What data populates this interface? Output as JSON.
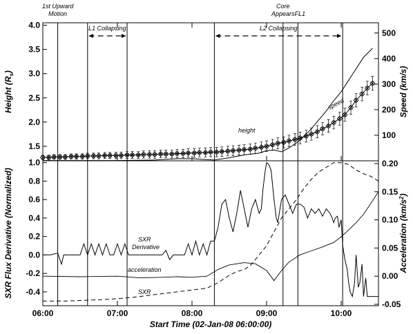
{
  "chart_data": [
    {
      "type": "line",
      "xlabel": "Start Time (02-Jan-08 06:00:00)",
      "ylabel_left": "Height (R",
      "ylabel_left_sub": "s",
      "ylabel_left_end": ")",
      "ylabel_right": "Speed (km/s)",
      "ylim_left": [
        1.2,
        4.05
      ],
      "ylim_right": [
        0,
        540
      ],
      "yticks_left": [
        "1.5",
        "2.0",
        "2.5",
        "3.0",
        "3.5",
        "4.0"
      ],
      "yticks_left_vals": [
        1.5,
        2.0,
        2.5,
        3.0,
        3.5,
        4.0
      ],
      "yticks_right": [
        "100",
        "200",
        "300",
        "400",
        "500"
      ],
      "yticks_right_vals": [
        100,
        200,
        300,
        400,
        500
      ],
      "series": [
        {
          "name": "height",
          "marker": "diamond-star",
          "x_hours": [
            6.0,
            6.08,
            6.15,
            6.23,
            6.3,
            6.38,
            6.45,
            6.53,
            6.6,
            6.68,
            6.75,
            6.83,
            6.9,
            6.98,
            7.05,
            7.13,
            7.2,
            7.28,
            7.35,
            7.43,
            7.5,
            7.58,
            7.65,
            7.73,
            7.8,
            7.88,
            7.95,
            8.03,
            8.1,
            8.18,
            8.25,
            8.33,
            8.4,
            8.48,
            8.55,
            8.63,
            8.7,
            8.78,
            8.85,
            8.93,
            9.0,
            9.08,
            9.15,
            9.23,
            9.3,
            9.38,
            9.45,
            9.53,
            9.6,
            9.68,
            9.75,
            9.83,
            9.9,
            9.98,
            10.05,
            10.13,
            10.2,
            10.28,
            10.35,
            10.42
          ],
          "y": [
            1.27,
            1.27,
            1.28,
            1.28,
            1.28,
            1.29,
            1.29,
            1.29,
            1.3,
            1.3,
            1.3,
            1.31,
            1.31,
            1.31,
            1.31,
            1.32,
            1.32,
            1.32,
            1.33,
            1.33,
            1.33,
            1.34,
            1.34,
            1.34,
            1.35,
            1.35,
            1.36,
            1.36,
            1.37,
            1.37,
            1.38,
            1.38,
            1.39,
            1.4,
            1.41,
            1.42,
            1.43,
            1.44,
            1.46,
            1.48,
            1.5,
            1.53,
            1.56,
            1.58,
            1.61,
            1.64,
            1.67,
            1.71,
            1.75,
            1.8,
            1.86,
            1.92,
            1.99,
            2.07,
            2.15,
            2.3,
            2.45,
            2.58,
            2.7,
            2.8
          ]
        },
        {
          "name": "speed",
          "x_hours": [
            6.0,
            6.5,
            7.0,
            7.5,
            7.8,
            8.0,
            8.3,
            8.5,
            8.7,
            8.9,
            9.0,
            9.1,
            9.2,
            9.3,
            9.4,
            9.5,
            9.6,
            9.7,
            9.8,
            9.9,
            10.0,
            10.1,
            10.2,
            10.3,
            10.42
          ],
          "y": [
            1,
            1,
            1,
            3,
            8,
            8,
            3,
            12,
            23,
            30,
            40,
            42,
            35,
            50,
            70,
            95,
            125,
            160,
            195,
            235,
            270,
            315,
            360,
            405,
            440
          ]
        }
      ],
      "annotations": [
        {
          "text": "1st Upward",
          "line2": "Motion",
          "at_hour": 6.2
        },
        {
          "text": "L1 Collapsing",
          "from_hour": 6.6,
          "to_hour": 7.13
        },
        {
          "text": "L2 Collapsing",
          "from_hour": 8.3,
          "to_hour": 10.02
        },
        {
          "text": "Core",
          "line2": "Appears",
          "at_hour": 9.22
        },
        {
          "text": "FL1",
          "at_hour": 9.42
        }
      ],
      "vertical_lines_hours": [
        6.2,
        6.6,
        7.13,
        8.3,
        9.22,
        9.42,
        10.02
      ],
      "curve_labels": {
        "height": "height",
        "speed": "speed"
      }
    },
    {
      "type": "line",
      "xlabel": "Start Time (02-Jan-08 06:00:00)",
      "ylabel_left": "SXR Flux Derivative (Normalized)",
      "ylabel_right": "Acceleration (km/s",
      "ylabel_right_sup": "2",
      "ylabel_right_end": ")",
      "xlim_hours": [
        6.0,
        10.5
      ],
      "xticks": [
        "06:00",
        "07:00",
        "08:00",
        "09:00",
        "10:00"
      ],
      "xticks_hours": [
        6,
        7,
        8,
        9,
        10
      ],
      "ylim_left": [
        -0.55,
        1.02
      ],
      "ylim_right": [
        -0.0525,
        0.205
      ],
      "yticks_left": [
        "-0.4",
        "-0.2",
        "0.0",
        "0.2",
        "0.4",
        "0.6",
        "0.8",
        "1.0"
      ],
      "yticks_left_vals": [
        -0.4,
        -0.2,
        0.0,
        0.2,
        0.4,
        0.6,
        0.8,
        1.0
      ],
      "yticks_right": [
        "-0.05",
        "0.00",
        "0.05",
        "0.10",
        "0.15",
        "0.20"
      ],
      "yticks_right_vals": [
        -0.05,
        0.0,
        0.05,
        0.1,
        0.15,
        0.2
      ],
      "series": [
        {
          "name": "SXR Derivative",
          "x_hours": [
            6.0,
            6.05,
            6.1,
            6.2,
            6.25,
            6.28,
            6.3,
            6.35,
            6.45,
            6.5,
            6.55,
            6.6,
            6.65,
            6.7,
            6.75,
            6.8,
            6.85,
            6.9,
            6.95,
            7.0,
            7.05,
            7.1,
            7.15,
            7.2,
            7.3,
            7.4,
            7.45,
            7.5,
            7.55,
            7.6,
            7.65,
            7.7,
            7.75,
            7.8,
            7.85,
            7.9,
            7.95,
            8.0,
            8.05,
            8.1,
            8.15,
            8.2,
            8.25,
            8.3,
            8.35,
            8.4,
            8.45,
            8.5,
            8.55,
            8.6,
            8.62,
            8.65,
            8.7,
            8.75,
            8.8,
            8.85,
            8.9,
            8.93,
            8.95,
            8.98,
            9.0,
            9.03,
            9.06,
            9.1,
            9.13,
            9.15,
            9.2,
            9.25,
            9.3,
            9.35,
            9.4,
            9.45,
            9.5,
            9.55,
            9.6,
            9.65,
            9.7,
            9.75,
            9.8,
            9.85,
            9.88,
            9.9,
            9.92,
            9.95,
            9.97,
            10.0,
            10.02,
            10.05,
            10.08,
            10.1,
            10.12,
            10.15,
            10.18,
            10.2,
            10.23,
            10.25,
            10.28,
            10.3,
            10.33,
            10.35,
            10.4,
            10.45,
            10.5
          ],
          "y": [
            0.0,
            0.0,
            0.0,
            0.02,
            -0.1,
            0.0,
            0.0,
            0.0,
            0.0,
            0.0,
            0.12,
            0.0,
            0.12,
            0.0,
            0.12,
            0.0,
            0.12,
            0.0,
            0.0,
            0.12,
            0.0,
            0.12,
            0.0,
            0.0,
            0.0,
            0.0,
            0.0,
            0.0,
            0.0,
            0.0,
            0.05,
            -0.05,
            0.0,
            0.0,
            0.0,
            0.0,
            0.12,
            0.0,
            0.15,
            0.0,
            0.12,
            0.0,
            0.15,
            0.15,
            0.3,
            0.55,
            0.6,
            0.4,
            0.25,
            0.45,
            0.55,
            0.7,
            0.5,
            0.3,
            0.5,
            0.6,
            0.45,
            0.5,
            0.7,
            0.9,
            1.0,
            0.98,
            0.92,
            0.6,
            0.4,
            0.35,
            0.6,
            0.65,
            0.55,
            0.45,
            0.55,
            0.55,
            0.52,
            0.4,
            0.5,
            0.45,
            0.5,
            0.42,
            0.5,
            0.45,
            0.4,
            0.35,
            0.4,
            0.42,
            0.3,
            0.38,
            0.1,
            -0.05,
            -0.15,
            -0.3,
            -0.4,
            -0.45,
            -0.3,
            0.0,
            -0.35,
            -0.3,
            -0.1,
            -0.45,
            -0.25,
            -0.45,
            -0.45,
            -0.45,
            -0.45
          ]
        },
        {
          "name": "acceleration",
          "x_hours": [
            6.0,
            6.5,
            7.0,
            7.3,
            7.6,
            7.8,
            8.0,
            8.2,
            8.35,
            8.5,
            8.7,
            8.85,
            9.0,
            9.1,
            9.2,
            9.3,
            9.45,
            9.6,
            9.75,
            9.9,
            10.0,
            10.1,
            10.2,
            10.3,
            10.4,
            10.5
          ],
          "y": [
            -0.0,
            -0.001,
            0.0,
            -0.003,
            -0.002,
            -0.001,
            -0.002,
            0.0,
            0.012,
            0.02,
            0.024,
            0.022,
            0.01,
            -0.008,
            0.01,
            0.025,
            0.038,
            0.045,
            0.052,
            0.06,
            0.07,
            0.082,
            0.095,
            0.11,
            0.13,
            0.15
          ]
        },
        {
          "name": "SXR",
          "x_hours": [
            6.0,
            6.3,
            6.6,
            6.9,
            7.2,
            7.5,
            7.8,
            8.0,
            8.2,
            8.35,
            8.5,
            8.6,
            8.7,
            8.8,
            8.9,
            9.0,
            9.1,
            9.2,
            9.3,
            9.4,
            9.5,
            9.6,
            9.7,
            9.8,
            9.9,
            10.0,
            10.1,
            10.2,
            10.3,
            10.4,
            10.5
          ],
          "y": [
            -0.5,
            -0.5,
            -0.49,
            -0.48,
            -0.46,
            -0.43,
            -0.4,
            -0.38,
            -0.36,
            -0.3,
            -0.22,
            -0.18,
            -0.16,
            -0.1,
            0.0,
            0.1,
            0.25,
            0.4,
            0.5,
            0.6,
            0.72,
            0.82,
            0.9,
            0.95,
            1.0,
            1.0,
            0.98,
            0.92,
            0.88,
            0.85,
            0.8
          ]
        }
      ],
      "curve_labels": {
        "sxr_derivative": "SXR",
        "sxr_derivative_line2": "Derivative",
        "acceleration": "acceleration",
        "sxr": "SXR"
      }
    }
  ]
}
